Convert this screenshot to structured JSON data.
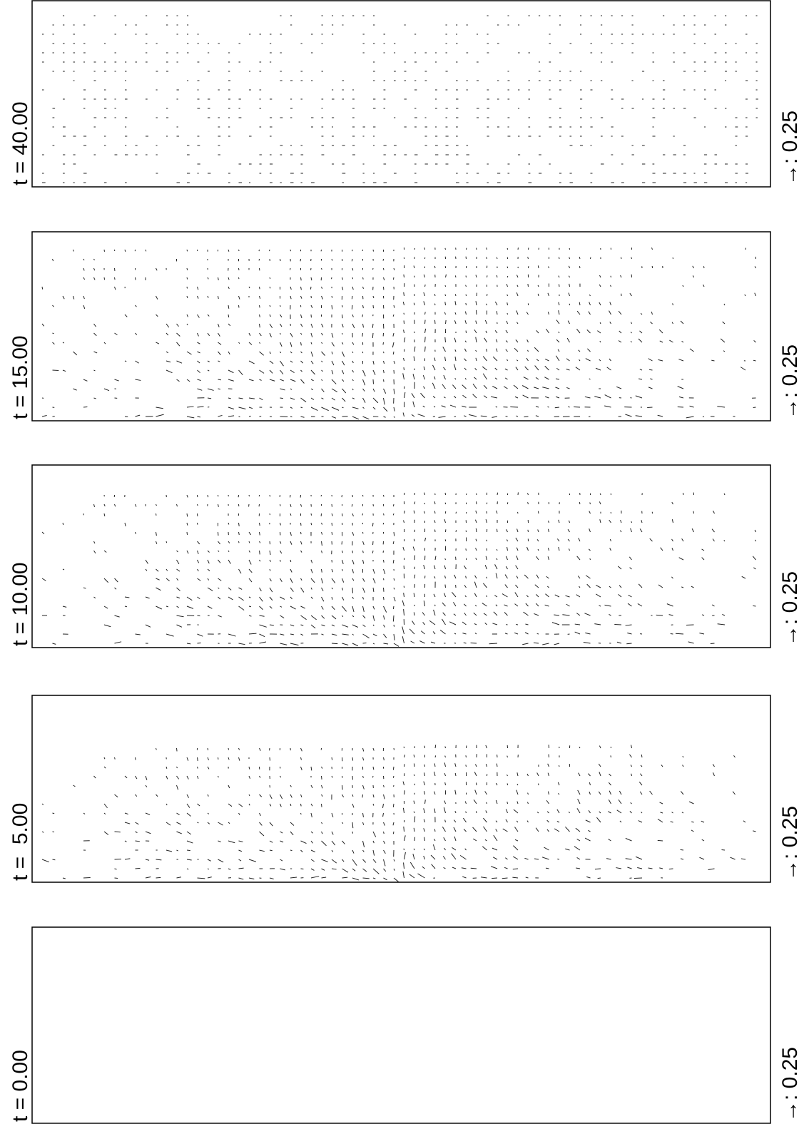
{
  "panels": [
    {
      "label": "t = 40.00",
      "scale": "→: 0.25"
    },
    {
      "label": "t = 15.00",
      "scale": "→: 0.25"
    },
    {
      "label": "t = 10.00",
      "scale": "→: 0.25"
    },
    {
      "label": "t =  5.00",
      "scale": "→: 0.25"
    },
    {
      "label": "t = 0.00",
      "scale": "→: 0.25"
    }
  ]
}
